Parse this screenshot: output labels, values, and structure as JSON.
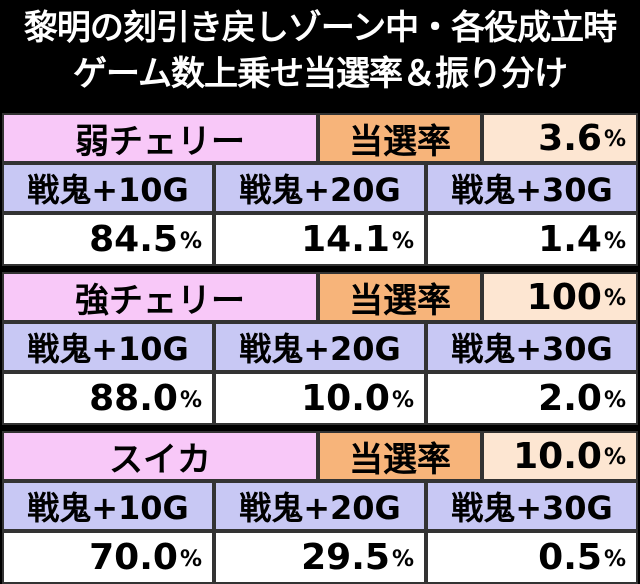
{
  "title": {
    "line1": "黎明の刻引き戻しゾーン中・各役成立時",
    "line2": "ゲーム数上乗せ当選率＆振り分け"
  },
  "label": "当選率",
  "percent_sign": "%",
  "columns": [
    "戦鬼+10G",
    "戦鬼+20G",
    "戦鬼+30G"
  ],
  "blocks": [
    {
      "name": "弱チェリー",
      "rate": "3.6",
      "values": [
        "84.5",
        "14.1",
        "1.4"
      ]
    },
    {
      "name": "強チェリー",
      "rate": "100",
      "values": [
        "88.0",
        "10.0",
        "2.0"
      ]
    },
    {
      "name": "スイカ",
      "rate": "10.0",
      "values": [
        "70.0",
        "29.5",
        "0.5"
      ]
    }
  ]
}
